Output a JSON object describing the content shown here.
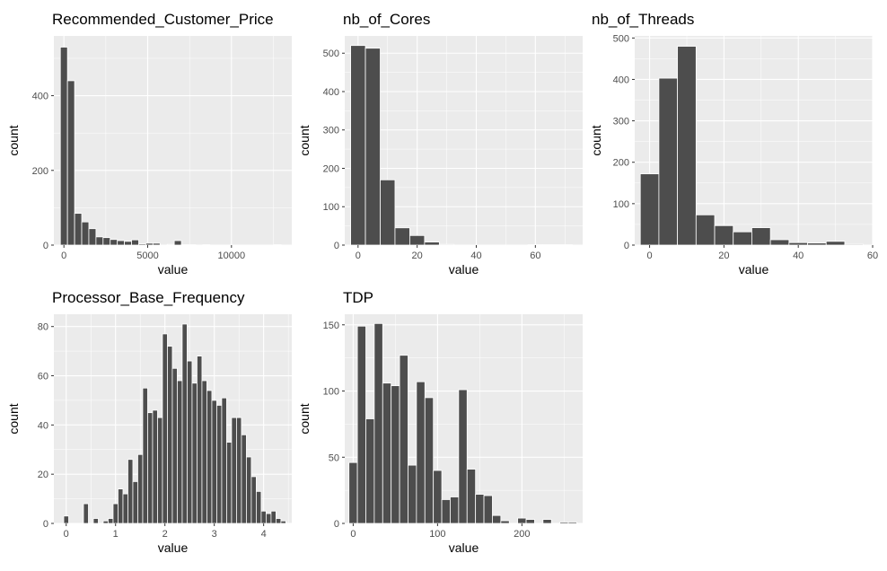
{
  "chart_data": [
    {
      "type": "bar",
      "title": "Recommended_Customer_Price",
      "xlabel": "value",
      "ylabel": "count",
      "xlim": [
        -600,
        13600
      ],
      "ylim": [
        0,
        560
      ],
      "xticks": [
        0,
        5000,
        10000
      ],
      "yticks": [
        0,
        200,
        400
      ],
      "binwidth": 425,
      "grid": true,
      "bins": [
        {
          "x": 0,
          "count": 530
        },
        {
          "x": 425,
          "count": 440
        },
        {
          "x": 850,
          "count": 85
        },
        {
          "x": 1275,
          "count": 62
        },
        {
          "x": 1700,
          "count": 44
        },
        {
          "x": 2125,
          "count": 22
        },
        {
          "x": 2550,
          "count": 20
        },
        {
          "x": 2975,
          "count": 15
        },
        {
          "x": 3400,
          "count": 12
        },
        {
          "x": 3825,
          "count": 10
        },
        {
          "x": 4250,
          "count": 14
        },
        {
          "x": 4675,
          "count": 3
        },
        {
          "x": 5100,
          "count": 5
        },
        {
          "x": 5525,
          "count": 5
        },
        {
          "x": 5950,
          "count": 0
        },
        {
          "x": 6375,
          "count": 2
        },
        {
          "x": 6800,
          "count": 12
        },
        {
          "x": 7225,
          "count": 1
        },
        {
          "x": 7650,
          "count": 1
        },
        {
          "x": 8075,
          "count": 0
        },
        {
          "x": 8500,
          "count": 1
        },
        {
          "x": 8925,
          "count": 0
        },
        {
          "x": 9350,
          "count": 0
        },
        {
          "x": 9775,
          "count": 0
        },
        {
          "x": 10200,
          "count": 0
        },
        {
          "x": 10625,
          "count": 0
        },
        {
          "x": 11050,
          "count": 0
        },
        {
          "x": 11475,
          "count": 0
        },
        {
          "x": 11900,
          "count": 0
        },
        {
          "x": 12325,
          "count": 0
        },
        {
          "x": 12750,
          "count": 1
        }
      ]
    },
    {
      "type": "bar",
      "title": "nb_of_Cores",
      "xlabel": "value",
      "ylabel": "count",
      "xlim": [
        -4.5,
        76
      ],
      "ylim": [
        0,
        545
      ],
      "xticks": [
        0,
        20,
        40,
        60
      ],
      "yticks": [
        0,
        100,
        200,
        300,
        400,
        500
      ],
      "binwidth": 5,
      "grid": true,
      "bins": [
        {
          "x": 0,
          "count": 520
        },
        {
          "x": 5,
          "count": 513
        },
        {
          "x": 10,
          "count": 170
        },
        {
          "x": 15,
          "count": 45
        },
        {
          "x": 20,
          "count": 25
        },
        {
          "x": 25,
          "count": 8
        },
        {
          "x": 30,
          "count": 2
        },
        {
          "x": 35,
          "count": 0
        },
        {
          "x": 40,
          "count": 0
        },
        {
          "x": 45,
          "count": 0
        },
        {
          "x": 50,
          "count": 0
        },
        {
          "x": 55,
          "count": 0
        },
        {
          "x": 60,
          "count": 1
        },
        {
          "x": 65,
          "count": 1
        },
        {
          "x": 70,
          "count": 1
        }
      ]
    },
    {
      "type": "bar",
      "title": "nb_of_Threads",
      "xlabel": "value",
      "ylabel": "count",
      "xlim": [
        -4,
        60
      ],
      "ylim": [
        0,
        505
      ],
      "xticks": [
        0,
        20,
        40,
        60
      ],
      "yticks": [
        0,
        100,
        200,
        300,
        400,
        500
      ],
      "binwidth": 5,
      "grid": true,
      "bins": [
        {
          "x": 0,
          "count": 172
        },
        {
          "x": 5,
          "count": 403
        },
        {
          "x": 10,
          "count": 480
        },
        {
          "x": 15,
          "count": 73
        },
        {
          "x": 20,
          "count": 47
        },
        {
          "x": 25,
          "count": 32
        },
        {
          "x": 30,
          "count": 42
        },
        {
          "x": 35,
          "count": 13
        },
        {
          "x": 40,
          "count": 6
        },
        {
          "x": 45,
          "count": 5
        },
        {
          "x": 50,
          "count": 9
        },
        {
          "x": 55,
          "count": 2
        }
      ]
    },
    {
      "type": "bar",
      "title": "Processor_Base_Frequency",
      "xlabel": "value",
      "ylabel": "count",
      "xlim": [
        -0.25,
        4.57
      ],
      "ylim": [
        0,
        85
      ],
      "xticks": [
        0,
        1,
        2,
        3,
        4
      ],
      "yticks": [
        0,
        20,
        40,
        60,
        80
      ],
      "binwidth": 0.1,
      "grid": true,
      "bins": [
        {
          "x": 0.0,
          "count": 3
        },
        {
          "x": 0.1,
          "count": 0
        },
        {
          "x": 0.2,
          "count": 0
        },
        {
          "x": 0.3,
          "count": 0
        },
        {
          "x": 0.4,
          "count": 8
        },
        {
          "x": 0.5,
          "count": 0
        },
        {
          "x": 0.6,
          "count": 2
        },
        {
          "x": 0.7,
          "count": 0
        },
        {
          "x": 0.8,
          "count": 1
        },
        {
          "x": 0.9,
          "count": 2
        },
        {
          "x": 1.0,
          "count": 8
        },
        {
          "x": 1.1,
          "count": 14
        },
        {
          "x": 1.2,
          "count": 12
        },
        {
          "x": 1.3,
          "count": 26
        },
        {
          "x": 1.4,
          "count": 17
        },
        {
          "x": 1.5,
          "count": 28
        },
        {
          "x": 1.6,
          "count": 55
        },
        {
          "x": 1.7,
          "count": 45
        },
        {
          "x": 1.8,
          "count": 46
        },
        {
          "x": 1.9,
          "count": 43
        },
        {
          "x": 2.0,
          "count": 77
        },
        {
          "x": 2.1,
          "count": 72
        },
        {
          "x": 2.2,
          "count": 63
        },
        {
          "x": 2.3,
          "count": 58
        },
        {
          "x": 2.4,
          "count": 81
        },
        {
          "x": 2.5,
          "count": 66
        },
        {
          "x": 2.6,
          "count": 57
        },
        {
          "x": 2.7,
          "count": 68
        },
        {
          "x": 2.8,
          "count": 58
        },
        {
          "x": 2.9,
          "count": 54
        },
        {
          "x": 3.0,
          "count": 50
        },
        {
          "x": 3.1,
          "count": 48
        },
        {
          "x": 3.2,
          "count": 51
        },
        {
          "x": 3.3,
          "count": 33
        },
        {
          "x": 3.4,
          "count": 43
        },
        {
          "x": 3.5,
          "count": 43
        },
        {
          "x": 3.6,
          "count": 36
        },
        {
          "x": 3.7,
          "count": 27
        },
        {
          "x": 3.8,
          "count": 19
        },
        {
          "x": 3.9,
          "count": 13
        },
        {
          "x": 4.0,
          "count": 5
        },
        {
          "x": 4.1,
          "count": 4
        },
        {
          "x": 4.2,
          "count": 5
        },
        {
          "x": 4.3,
          "count": 2
        },
        {
          "x": 4.4,
          "count": 1
        }
      ]
    },
    {
      "type": "bar",
      "title": "TDP",
      "xlabel": "value",
      "ylabel": "count",
      "xlim": [
        -10,
        272
      ],
      "ylim": [
        0,
        158
      ],
      "xticks": [
        0,
        100,
        200
      ],
      "yticks": [
        0,
        50,
        100,
        150
      ],
      "binwidth": 10,
      "grid": true,
      "bins": [
        {
          "x": 0,
          "count": 46
        },
        {
          "x": 10,
          "count": 149
        },
        {
          "x": 20,
          "count": 79
        },
        {
          "x": 30,
          "count": 151
        },
        {
          "x": 40,
          "count": 106
        },
        {
          "x": 50,
          "count": 104
        },
        {
          "x": 60,
          "count": 127
        },
        {
          "x": 70,
          "count": 44
        },
        {
          "x": 80,
          "count": 107
        },
        {
          "x": 90,
          "count": 95
        },
        {
          "x": 100,
          "count": 40
        },
        {
          "x": 110,
          "count": 18
        },
        {
          "x": 120,
          "count": 20
        },
        {
          "x": 130,
          "count": 101
        },
        {
          "x": 140,
          "count": 41
        },
        {
          "x": 150,
          "count": 22
        },
        {
          "x": 160,
          "count": 21
        },
        {
          "x": 170,
          "count": 6
        },
        {
          "x": 180,
          "count": 2
        },
        {
          "x": 190,
          "count": 0
        },
        {
          "x": 200,
          "count": 4
        },
        {
          "x": 210,
          "count": 3
        },
        {
          "x": 220,
          "count": 0
        },
        {
          "x": 230,
          "count": 3
        },
        {
          "x": 240,
          "count": 0
        },
        {
          "x": 250,
          "count": 1
        },
        {
          "x": 260,
          "count": 1
        }
      ]
    }
  ],
  "colors": {
    "panel_bg": "#ebebeb",
    "grid": "#ffffff",
    "bar_fill": "#4d4d4d",
    "bar_stroke": "#ffffff",
    "tick_text": "#4d4d4d",
    "axis_text": "#000000"
  }
}
